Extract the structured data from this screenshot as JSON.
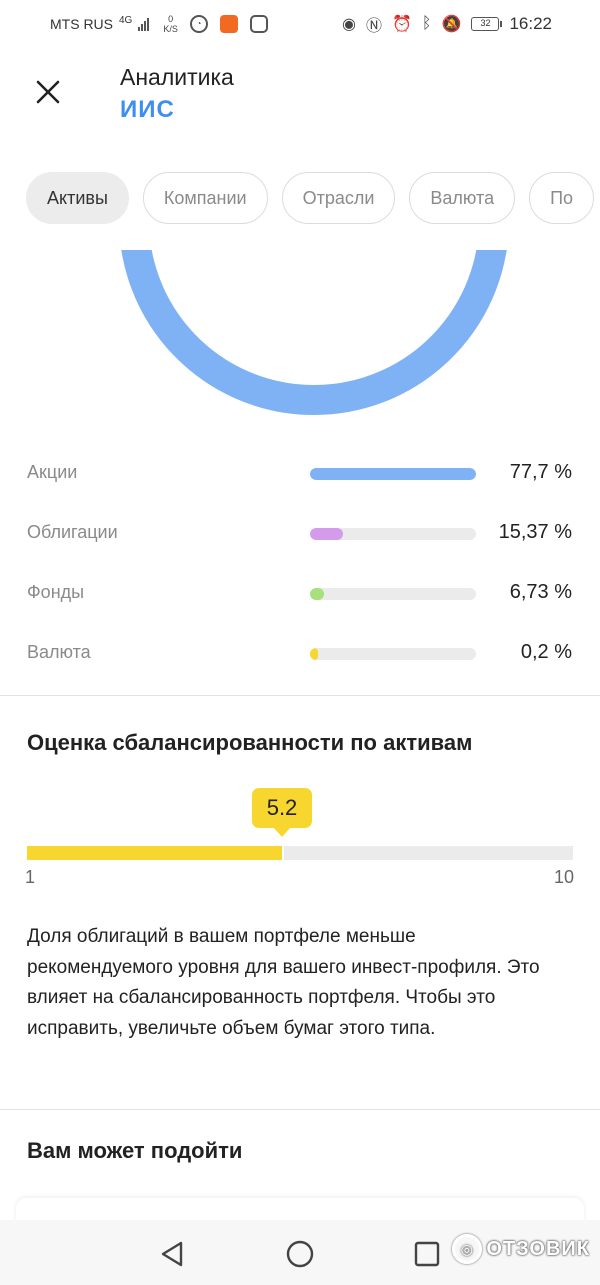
{
  "status_bar": {
    "carrier": "MTS RUS",
    "network": "4G",
    "speed_value": "0",
    "speed_unit": "K/S",
    "time": "16:22",
    "battery": "32"
  },
  "header": {
    "title": "Аналитика",
    "subtitle": "ИИС"
  },
  "tabs": [
    {
      "label": "Активы",
      "active": true
    },
    {
      "label": "Компании",
      "active": false
    },
    {
      "label": "Отрасли",
      "active": false
    },
    {
      "label": "Валюта",
      "active": false
    },
    {
      "label": "По",
      "active": false
    }
  ],
  "chart_data": {
    "type": "pie",
    "categories": [
      "Акции",
      "Облигации",
      "Фонды",
      "Валюта"
    ],
    "values": [
      77.7,
      15.37,
      6.73,
      0.2
    ],
    "value_labels": [
      "77,7 %",
      "15,37 %",
      "6,73 %",
      "0,2 %"
    ],
    "colors": [
      "#7fb2f4",
      "#d49bec",
      "#a7e07d",
      "#f8d630"
    ]
  },
  "balance": {
    "title": "Оценка сбалансированности по активам",
    "score": "5.2",
    "score_value": 5.2,
    "min": "1",
    "max": "10",
    "min_value": 1,
    "max_value": 10,
    "color": "#f8d630"
  },
  "note": "Доля облигаций в вашем портфеле меньше рекомендуемого уровня для вашего инвест-профиля. Это влияет на сбалансированность портфеля. Чтобы это исправить, увеличьте объем бумаг этого типа.",
  "suggestions": {
    "title": "Вам может подойти"
  },
  "watermark": "ОТЗОВИК"
}
